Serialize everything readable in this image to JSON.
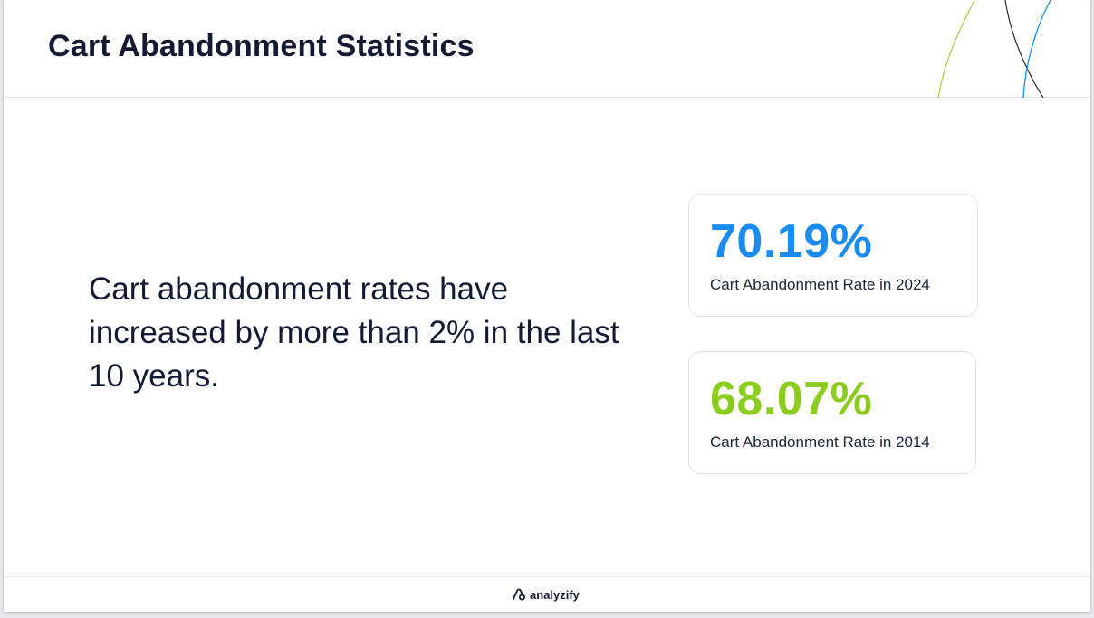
{
  "header": {
    "title": "Cart Abandonment Statistics"
  },
  "main": {
    "statement": "Cart abandonment rates have increased by more than 2% in the last 10 years."
  },
  "stats": [
    {
      "value": "70.19%",
      "caption": "Cart Abandonment Rate in 2024",
      "color": "#1a8cf0"
    },
    {
      "value": "68.07%",
      "caption": "Cart Abandonment Rate in 2014",
      "color": "#8ccc1e"
    }
  ],
  "footer": {
    "brand": "analyzify",
    "logo_icon": "analyzify-logo-icon"
  },
  "colors": {
    "title_text": "#141a33",
    "accent_blue": "#1a8cf0",
    "accent_green": "#8ccc1e"
  }
}
